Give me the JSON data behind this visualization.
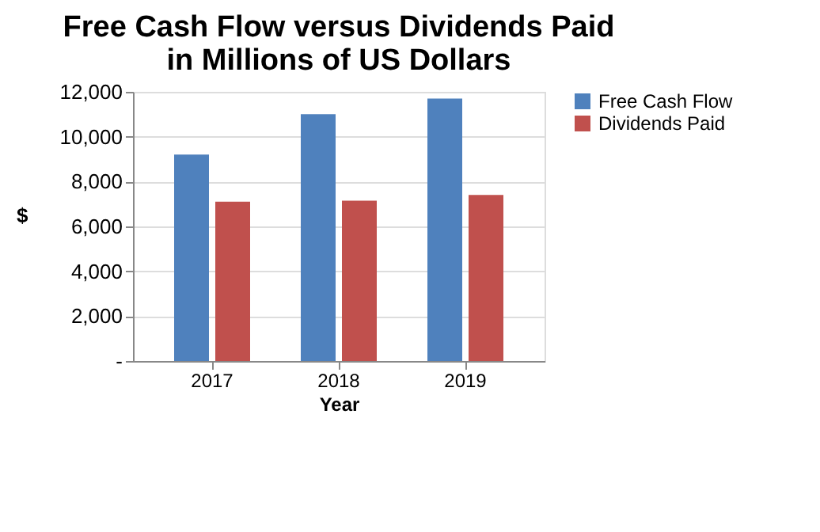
{
  "chart_data": {
    "type": "bar",
    "title": [
      "Free Cash Flow versus Dividends Paid",
      "in Millions of US Dollars"
    ],
    "xlabel": "Year",
    "ylabel": "$",
    "categories": [
      "2017",
      "2018",
      "2019"
    ],
    "series": [
      {
        "name": "Free Cash Flow",
        "color": "#4f81bd",
        "values": [
          9200,
          11000,
          11700
        ]
      },
      {
        "name": "Dividends Paid",
        "color": "#c0504d",
        "values": [
          7100,
          7150,
          7400
        ]
      }
    ],
    "ylim": [
      0,
      12000
    ],
    "yticks": [
      {
        "value": 0,
        "label": "-"
      },
      {
        "value": 2000,
        "label": "2,000"
      },
      {
        "value": 4000,
        "label": "4,000"
      },
      {
        "value": 6000,
        "label": "6,000"
      },
      {
        "value": 8000,
        "label": "8,000"
      },
      {
        "value": 10000,
        "label": "10,000"
      },
      {
        "value": 12000,
        "label": "12,000"
      }
    ],
    "grid": "y",
    "legend": "right"
  }
}
